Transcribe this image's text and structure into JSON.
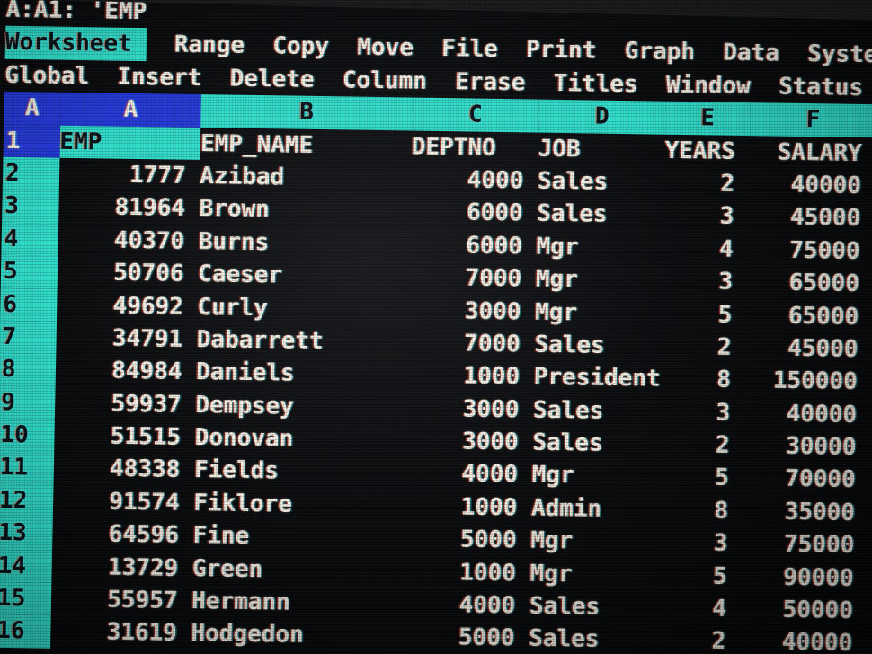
{
  "edit_line": "A:A1: 'EMP",
  "menu": {
    "selected": "Worksheet",
    "items": [
      "Range",
      "Copy",
      "Move",
      "File",
      "Print",
      "Graph",
      "Data",
      "System"
    ],
    "submenu": [
      "Global",
      "Insert",
      "Delete",
      "Column",
      "Erase",
      "Titles",
      "Window",
      "Status"
    ]
  },
  "sheet": {
    "corner": "A",
    "columns": [
      "A",
      "B",
      "C",
      "D",
      "E",
      "F"
    ],
    "field_row": {
      "num": "1",
      "emp": "EMP",
      "name": "EMP_NAME",
      "deptno": "DEPTNO",
      "job": "JOB",
      "years": "YEARS",
      "salary": "SALARY"
    },
    "rows": [
      {
        "num": "2",
        "emp": "1777",
        "name": "Azibad",
        "deptno": "4000",
        "job": "Sales",
        "years": "2",
        "salary": "40000"
      },
      {
        "num": "3",
        "emp": "81964",
        "name": "Brown",
        "deptno": "6000",
        "job": "Sales",
        "years": "3",
        "salary": "45000"
      },
      {
        "num": "4",
        "emp": "40370",
        "name": "Burns",
        "deptno": "6000",
        "job": "Mgr",
        "years": "4",
        "salary": "75000"
      },
      {
        "num": "5",
        "emp": "50706",
        "name": "Caeser",
        "deptno": "7000",
        "job": "Mgr",
        "years": "3",
        "salary": "65000"
      },
      {
        "num": "6",
        "emp": "49692",
        "name": "Curly",
        "deptno": "3000",
        "job": "Mgr",
        "years": "5",
        "salary": "65000"
      },
      {
        "num": "7",
        "emp": "34791",
        "name": "Dabarrett",
        "deptno": "7000",
        "job": "Sales",
        "years": "2",
        "salary": "45000"
      },
      {
        "num": "8",
        "emp": "84984",
        "name": "Daniels",
        "deptno": "1000",
        "job": "President",
        "years": "8",
        "salary": "150000"
      },
      {
        "num": "9",
        "emp": "59937",
        "name": "Dempsey",
        "deptno": "3000",
        "job": "Sales",
        "years": "3",
        "salary": "40000"
      },
      {
        "num": "10",
        "emp": "51515",
        "name": "Donovan",
        "deptno": "3000",
        "job": "Sales",
        "years": "2",
        "salary": "30000"
      },
      {
        "num": "11",
        "emp": "48338",
        "name": "Fields",
        "deptno": "4000",
        "job": "Mgr",
        "years": "5",
        "salary": "70000"
      },
      {
        "num": "12",
        "emp": "91574",
        "name": "Fiklore",
        "deptno": "1000",
        "job": "Admin",
        "years": "8",
        "salary": "35000"
      },
      {
        "num": "13",
        "emp": "64596",
        "name": "Fine",
        "deptno": "5000",
        "job": "Mgr",
        "years": "3",
        "salary": "75000"
      },
      {
        "num": "14",
        "emp": "13729",
        "name": "Green",
        "deptno": "1000",
        "job": "Mgr",
        "years": "5",
        "salary": "90000"
      },
      {
        "num": "15",
        "emp": "55957",
        "name": "Hermann",
        "deptno": "4000",
        "job": "Sales",
        "years": "4",
        "salary": "50000"
      },
      {
        "num": "16",
        "emp": "31619",
        "name": "Hodgedon",
        "deptno": "5000",
        "job": "Sales",
        "years": "2",
        "salary": "40000"
      }
    ]
  },
  "colors": {
    "frame_cyan": "#30dcca",
    "cursor_blue": "#2439d6",
    "text": "#f1ede2",
    "background": "#0a0b0d"
  }
}
